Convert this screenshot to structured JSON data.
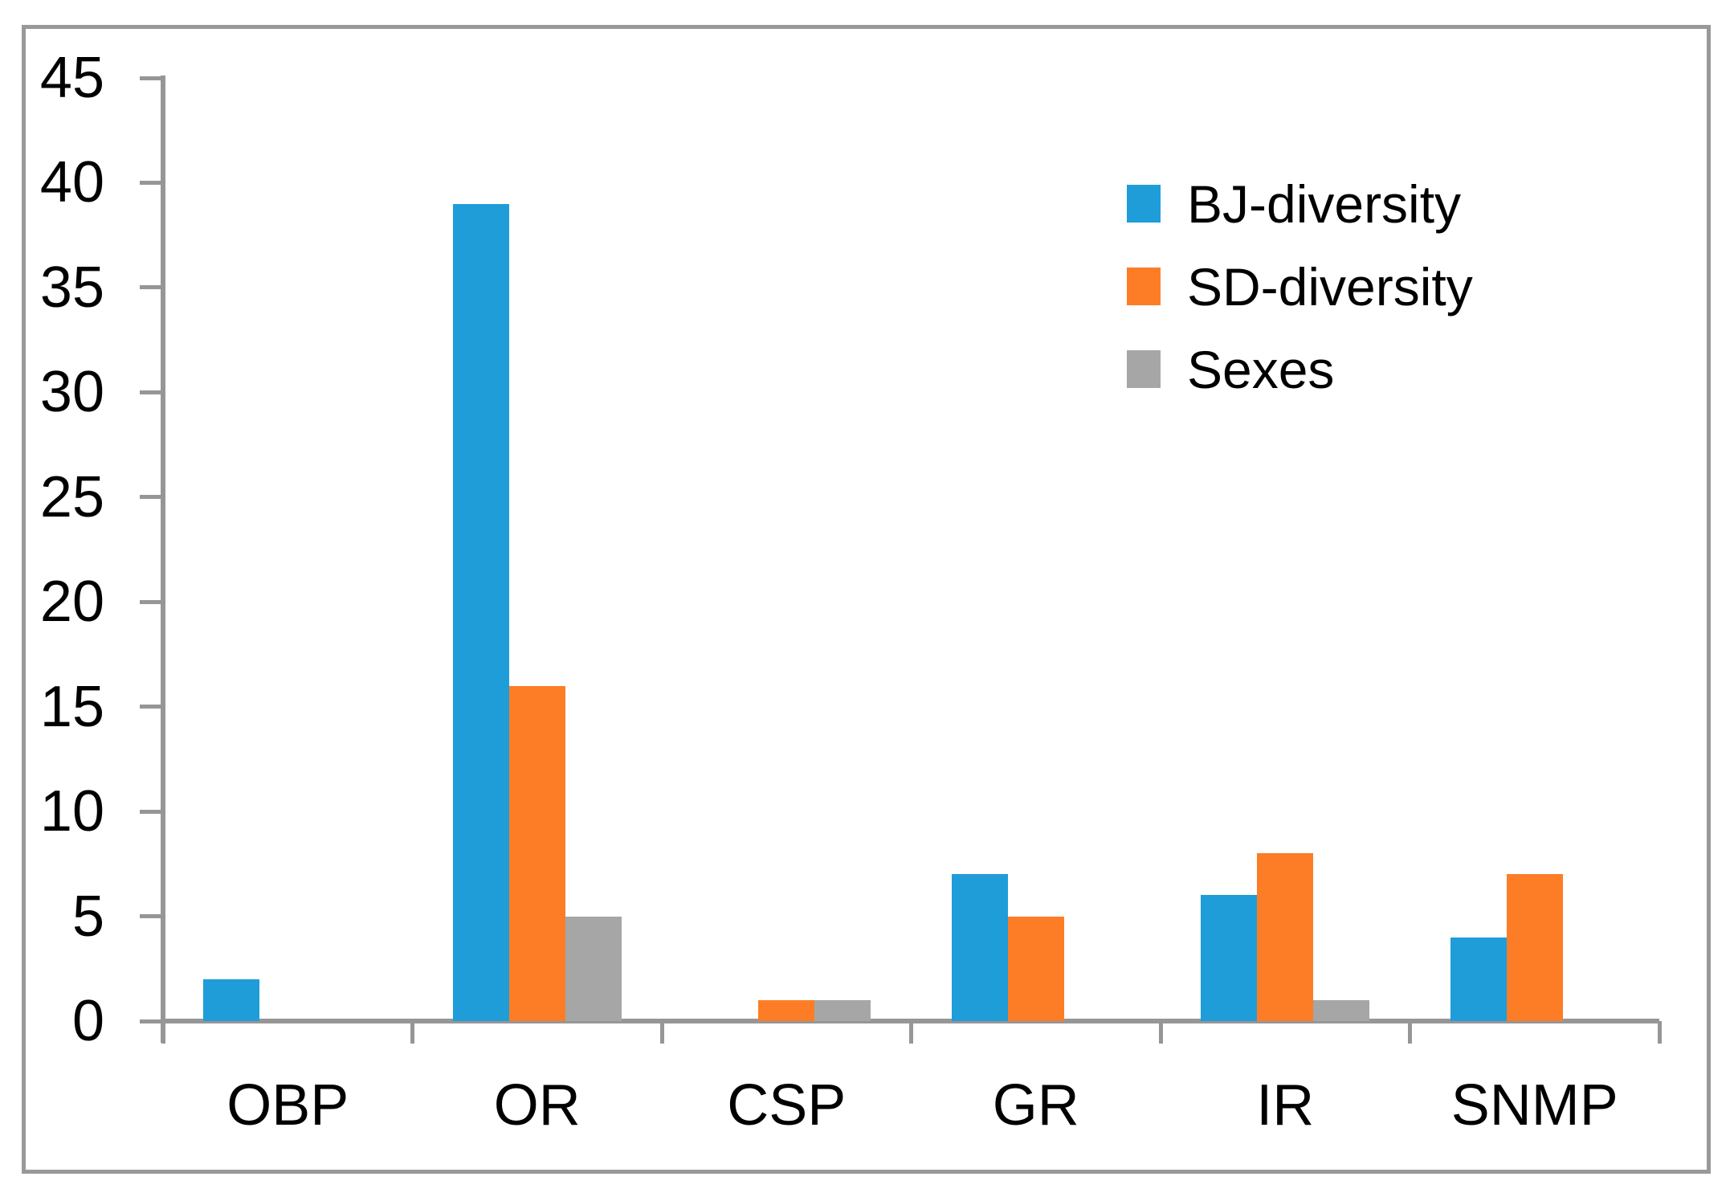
{
  "chart_data": {
    "type": "bar",
    "categories": [
      "OBP",
      "OR",
      "CSP",
      "GR",
      "IR",
      "SNMP"
    ],
    "series": [
      {
        "name": "BJ-diversity",
        "color": "#1E9DD9",
        "values": [
          2,
          39,
          0,
          7,
          6,
          4
        ]
      },
      {
        "name": "SD-diversity",
        "color": "#FD7D26",
        "values": [
          0,
          16,
          1,
          5,
          8,
          7
        ]
      },
      {
        "name": "Sexes",
        "color": "#A6A6A6",
        "values": [
          0,
          5,
          1,
          0,
          1,
          0
        ]
      }
    ],
    "title": "",
    "xlabel": "",
    "ylabel": "",
    "ylim": [
      0,
      45
    ],
    "ytick_step": 5,
    "ytick_labels": [
      "0",
      "5",
      "10",
      "15",
      "20",
      "25",
      "30",
      "35",
      "40",
      "45"
    ],
    "grid": false,
    "legend_position": "upper-right",
    "colors": {
      "axis": "#969696",
      "frame_border": "#999999",
      "text": "#000000",
      "background": "#FFFFFF"
    }
  }
}
